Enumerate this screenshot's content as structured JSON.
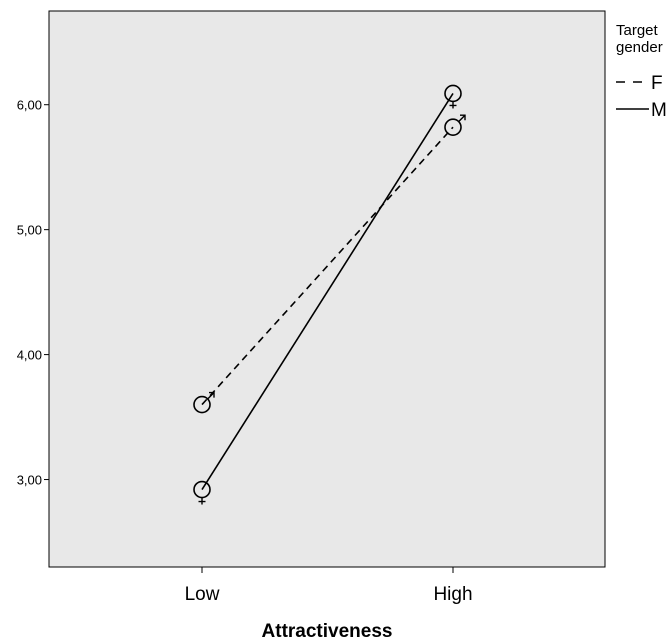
{
  "chart_data": {
    "type": "line",
    "categories": [
      "Low",
      "High"
    ],
    "xlabel": "Attractiveness",
    "ylabel": "",
    "ylim": [
      2.3,
      6.75
    ],
    "yticks": [
      3.0,
      4.0,
      5.0,
      6.0
    ],
    "ytick_labels": [
      "3,00",
      "4,00",
      "5,00",
      "6,00"
    ],
    "grid": false,
    "background_color": "#e8e8e8",
    "legend": {
      "title_lines": [
        "Target",
        "gender"
      ],
      "placement": "right"
    },
    "series": [
      {
        "name": "F",
        "values": [
          3.6,
          5.82
        ],
        "line_style": "dashed",
        "color": "#000000",
        "marker": "male-symbol-icon"
      },
      {
        "name": "M",
        "values": [
          2.92,
          6.09
        ],
        "line_style": "solid",
        "color": "#000000",
        "marker": "female-symbol-icon"
      }
    ]
  }
}
